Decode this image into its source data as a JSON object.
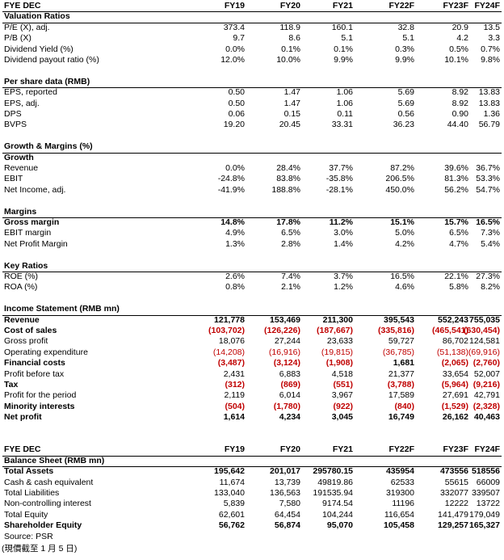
{
  "tables": [
    {
      "header": [
        "FYE DEC",
        "FY19",
        "FY20",
        "FY21",
        "FY22F",
        "FY23F",
        "FY24F"
      ],
      "sections": [
        {
          "title": "Valuation Ratios",
          "rows": [
            {
              "label": "P/E (X), adj.",
              "values": [
                "373.4",
                "118.9",
                "160.1",
                "32.8",
                "20.9",
                "13.5"
              ]
            },
            {
              "label": "P/B (X)",
              "values": [
                "9.7",
                "8.6",
                "5.1",
                "5.1",
                "4.2",
                "3.3"
              ]
            },
            {
              "label": "Dividend Yield (%)",
              "values": [
                "0.0%",
                "0.1%",
                "0.1%",
                "0.3%",
                "0.5%",
                "0.7%"
              ]
            },
            {
              "label": "Dividend payout ratio (%)",
              "values": [
                "12.0%",
                "10.0%",
                "9.9%",
                "9.9%",
                "10.1%",
                "9.8%"
              ]
            }
          ]
        },
        {
          "title": "Per share data (RMB)",
          "rows": [
            {
              "label": "EPS, reported",
              "values": [
                "0.50",
                "1.47",
                "1.06",
                "5.69",
                "8.92",
                "13.83"
              ]
            },
            {
              "label": "EPS, adj.",
              "values": [
                "0.50",
                "1.47",
                "1.06",
                "5.69",
                "8.92",
                "13.83"
              ]
            },
            {
              "label": "DPS",
              "values": [
                "0.06",
                "0.15",
                "0.11",
                "0.56",
                "0.90",
                "1.36"
              ]
            },
            {
              "label": "BVPS",
              "values": [
                "19.20",
                "20.45",
                "33.31",
                "36.23",
                "44.40",
                "56.79"
              ]
            }
          ]
        },
        {
          "title": "Growth & Margins (%)",
          "rows": [
            {
              "label": "Growth",
              "bold": true,
              "values": []
            },
            {
              "label": "Revenue",
              "values": [
                "0.0%",
                "28.4%",
                "37.7%",
                "87.2%",
                "39.6%",
                "36.7%"
              ]
            },
            {
              "label": "EBIT",
              "values": [
                "-24.8%",
                "83.8%",
                "-35.8%",
                "206.5%",
                "81.3%",
                "53.3%"
              ]
            },
            {
              "label": "Net Income, adj.",
              "values": [
                "-41.9%",
                "188.8%",
                "-28.1%",
                "450.0%",
                "56.2%",
                "54.7%"
              ]
            }
          ]
        },
        {
          "title": "Margins",
          "rows": [
            {
              "label": "Gross margin",
              "bold": true,
              "values": [
                "14.8%",
                "17.8%",
                "11.2%",
                "15.1%",
                "15.7%",
                "16.5%"
              ]
            },
            {
              "label": "EBIT margin",
              "values": [
                "4.9%",
                "6.5%",
                "3.0%",
                "5.0%",
                "6.5%",
                "7.3%"
              ]
            },
            {
              "label": "Net Profit Margin",
              "values": [
                "1.3%",
                "2.8%",
                "1.4%",
                "4.2%",
                "4.7%",
                "5.4%"
              ]
            }
          ]
        },
        {
          "title": "Key Ratios",
          "rows": [
            {
              "label": "ROE (%)",
              "values": [
                "2.6%",
                "7.4%",
                "3.7%",
                "16.5%",
                "22.1%",
                "27.3%"
              ]
            },
            {
              "label": "ROA (%)",
              "values": [
                "0.8%",
                "2.1%",
                "1.2%",
                "4.6%",
                "5.8%",
                "8.2%"
              ]
            }
          ]
        },
        {
          "title": "Income Statement (RMB mn)",
          "rows": [
            {
              "label": "Revenue",
              "bold": true,
              "values": [
                "121,778",
                "153,469",
                "211,300",
                "395,543",
                "552,243",
                "755,035"
              ]
            },
            {
              "label": "Cost of sales",
              "bold": true,
              "values": [
                "(103,702)",
                "(126,226)",
                "(187,667)",
                "(335,816)",
                "(465,541)",
                "(630,454)"
              ]
            },
            {
              "label": "Gross profit",
              "values": [
                "18,076",
                "27,244",
                "23,633",
                "59,727",
                "86,702",
                "124,581"
              ]
            },
            {
              "label": "Operating expenditure",
              "values": [
                "(14,208)",
                "(16,916)",
                "(19,815)",
                "(36,785)",
                "(51,138)",
                "(69,916)"
              ]
            },
            {
              "label": "Financial costs",
              "bold": true,
              "values": [
                "(3,487)",
                "(3,124)",
                "(1,908)",
                "1,681",
                "(2,065)",
                "(2,760)"
              ]
            },
            {
              "label": "Profit before tax",
              "values": [
                "2,431",
                "6,883",
                "4,518",
                "21,377",
                "33,654",
                "52,007"
              ]
            },
            {
              "label": "Tax",
              "bold": true,
              "values": [
                "(312)",
                "(869)",
                "(551)",
                "(3,788)",
                "(5,964)",
                "(9,216)"
              ]
            },
            {
              "label": "Profit for the period",
              "values": [
                "2,119",
                "6,014",
                "3,967",
                "17,589",
                "27,691",
                "42,791"
              ]
            },
            {
              "label": "Minority interests",
              "bold": true,
              "values": [
                "(504)",
                "(1,780)",
                "(922)",
                "(840)",
                "(1,529)",
                "(2,328)"
              ]
            },
            {
              "label": "Net profit",
              "bold": true,
              "values": [
                "1,614",
                "4,234",
                "3,045",
                "16,749",
                "26,162",
                "40,463"
              ]
            }
          ]
        }
      ]
    },
    {
      "header": [
        "FYE DEC",
        "FY19",
        "FY20",
        "FY21",
        "FY22F",
        "FY23F",
        "FY24F"
      ],
      "sections": [
        {
          "title": "Balance Sheet (RMB mn)",
          "rows": [
            {
              "label": "Total Assets",
              "bold": true,
              "values": [
                "195,642",
                "201,017",
                "295780.15",
                "435954",
                "473556",
                "518556"
              ]
            },
            {
              "label": "Cash & cash equivalent",
              "values": [
                "11,674",
                "13,739",
                "49819.86",
                "62533",
                "55615",
                "66009"
              ]
            },
            {
              "label": "Total Liabilities",
              "values": [
                "133,040",
                "136,563",
                "191535.94",
                "319300",
                "332077",
                "339507"
              ]
            },
            {
              "label": "Non-controlling interest",
              "values": [
                "5,839",
                "7,580",
                "9174.54",
                "11196",
                "12222",
                "13722"
              ]
            },
            {
              "label": "Total Equity",
              "values": [
                "62,601",
                "64,454",
                "104,244",
                "116,654",
                "141,479",
                "179,049"
              ]
            },
            {
              "label": "Shareholder Equity",
              "bold": true,
              "values": [
                "56,762",
                "56,874",
                "95,070",
                "105,458",
                "129,257",
                "165,327"
              ]
            }
          ]
        }
      ]
    }
  ],
  "footer": {
    "source": "Source: PSR",
    "note": "(現價截至 1 月 5 日)"
  }
}
